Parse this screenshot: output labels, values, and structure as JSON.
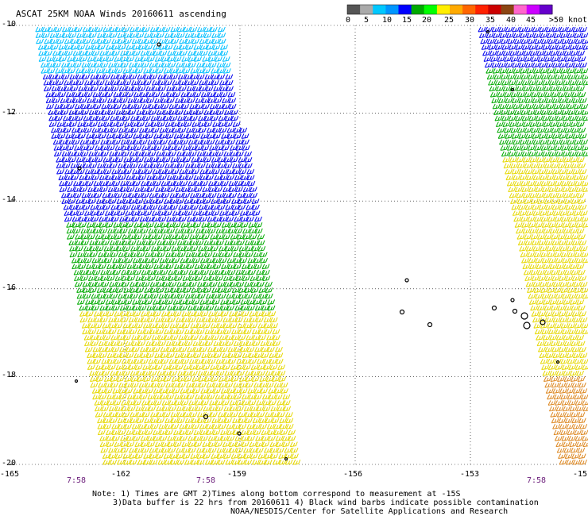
{
  "title": "ASCAT 25KM NOAA Winds 20160611 ascending",
  "colorbar": {
    "labels": [
      "0",
      "5",
      "10",
      "15",
      "20",
      "25",
      "30",
      "35",
      "40",
      "45",
      ">50 knots"
    ],
    "colors": [
      "#555555",
      "#aaaaaa",
      "#00c8ff",
      "#0096ff",
      "#0000ff",
      "#00aa00",
      "#00ff00",
      "#ffee00",
      "#ffaa00",
      "#ff6600",
      "#ff2200",
      "#cc0000",
      "#8b4513",
      "#ff66cc",
      "#cc00ff",
      "#6600cc"
    ]
  },
  "y_axis": {
    "ticks": [
      "-10",
      "-12",
      "-14",
      "-16",
      "-18",
      "-20"
    ]
  },
  "x_axis": {
    "ticks": [
      "-165",
      "-162",
      "-159",
      "-156",
      "-153",
      "-15"
    ]
  },
  "time_labels": [
    "7:58",
    "7:58",
    "7:58"
  ],
  "notes": [
    "Note: 1) Times are GMT 2)Times along bottom correspond to measurement at -15S",
    "3)Data buffer is 22 hrs from 20160611 4) Black wind barbs indicate possible contamination",
    "NOAA/NESDIS/Center for Satellite Applications and Research"
  ],
  "swaths": [
    {
      "name": "western swath",
      "bands": [
        {
          "lat_from": -10,
          "lat_to": -11.2,
          "color": "#00bfff"
        },
        {
          "lat_from": -11.2,
          "lat_to": -14.5,
          "color": "#0000ee"
        },
        {
          "lat_from": -14.5,
          "lat_to": -16.5,
          "color": "#00aa00"
        },
        {
          "lat_from": -16.5,
          "lat_to": -20,
          "color": "#e6d800"
        }
      ]
    },
    {
      "name": "eastern swath",
      "bands": [
        {
          "lat_from": -10,
          "lat_to": -11,
          "color": "#0000ee"
        },
        {
          "lat_from": -11,
          "lat_to": -13,
          "color": "#00aa00"
        },
        {
          "lat_from": -13,
          "lat_to": -18,
          "color": "#e6d800"
        },
        {
          "lat_from": -18,
          "lat_to": -20,
          "color": "#dd8822"
        }
      ]
    }
  ]
}
